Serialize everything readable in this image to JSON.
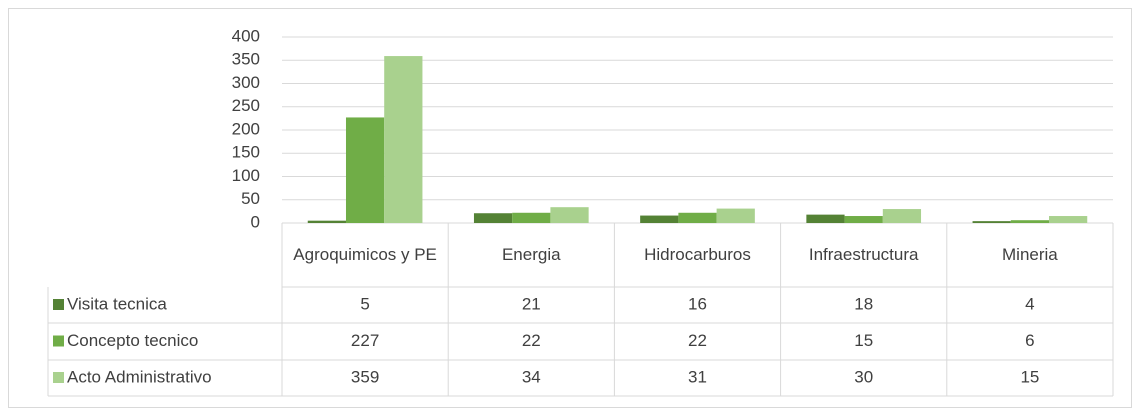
{
  "chart_data": {
    "type": "bar",
    "categories": [
      "Agroquimicos y PE",
      "Energia",
      "Hidrocarburos",
      "Infraestructura",
      "Mineria"
    ],
    "series": [
      {
        "name": "Visita tecnica",
        "color": "#548235",
        "values": [
          5,
          21,
          16,
          18,
          4
        ]
      },
      {
        "name": "Concepto tecnico",
        "color": "#70ad47",
        "values": [
          227,
          22,
          22,
          15,
          6
        ]
      },
      {
        "name": "Acto Administrativo",
        "color": "#a9d18e",
        "values": [
          359,
          34,
          31,
          30,
          15
        ]
      }
    ],
    "ylim": [
      0,
      400
    ],
    "yticks": [
      0,
      50,
      100,
      150,
      200,
      250,
      300,
      350,
      400
    ],
    "grid": true
  }
}
